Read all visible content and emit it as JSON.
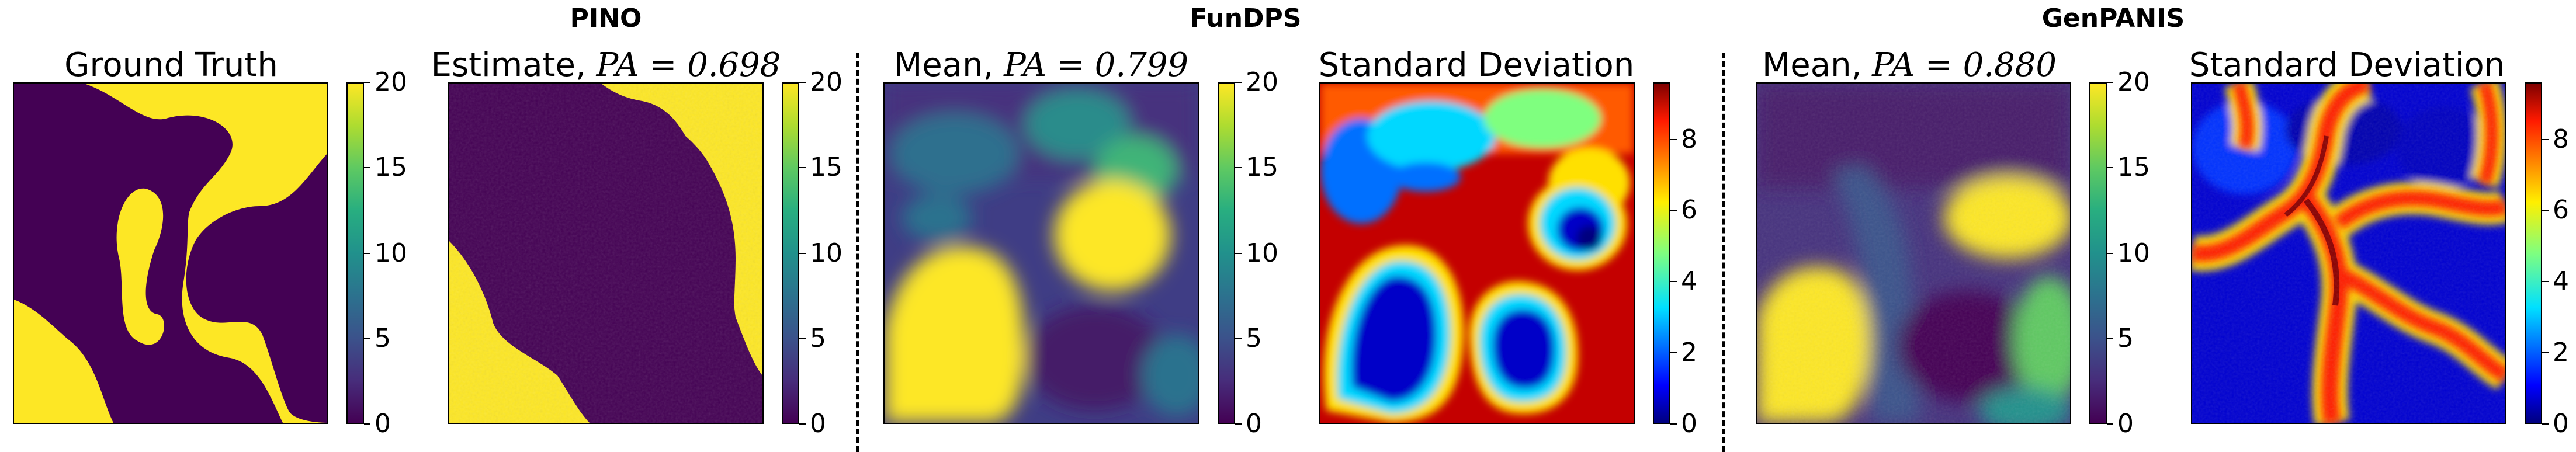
{
  "figure": {
    "groups": [
      {
        "title": "PINO"
      },
      {
        "title": "FunDPS"
      },
      {
        "title": "GenPANIS"
      }
    ],
    "panels": [
      {
        "title_prefix": "Ground Truth",
        "math": ""
      },
      {
        "title_prefix": "Estimate, ",
        "math": "PA = 0.698"
      },
      {
        "title_prefix": "Mean, ",
        "math": "PA = 0.799"
      },
      {
        "title_prefix": "Standard Deviation",
        "math": ""
      },
      {
        "title_prefix": "Mean, ",
        "math": "PA = 0.880"
      },
      {
        "title_prefix": "Standard Deviation",
        "math": ""
      }
    ],
    "colorbars": [
      {
        "colormap": "viridis",
        "ticks": [
          "0",
          "5",
          "10",
          "15",
          "20"
        ]
      },
      {
        "colormap": "viridis",
        "ticks": [
          "0",
          "5",
          "10",
          "15",
          "20"
        ]
      },
      {
        "colormap": "viridis",
        "ticks": [
          "0",
          "5",
          "10",
          "15",
          "20"
        ]
      },
      {
        "colormap": "jet",
        "ticks": [
          "0",
          "2",
          "4",
          "6",
          "8"
        ]
      },
      {
        "colormap": "viridis",
        "ticks": [
          "0",
          "5",
          "10",
          "15",
          "20"
        ]
      },
      {
        "colormap": "jet",
        "ticks": [
          "0",
          "2",
          "4",
          "6",
          "8"
        ]
      }
    ]
  },
  "chart_data": [
    {
      "type": "heatmap",
      "group": "PINO",
      "title": "Ground Truth",
      "colormap": "viridis",
      "clim": [
        0,
        20
      ],
      "colorbar_ticks": [
        0,
        5,
        10,
        15,
        20
      ]
    },
    {
      "type": "heatmap",
      "group": "PINO",
      "title": "Estimate, PA = 0.698",
      "pa": 0.698,
      "colormap": "viridis",
      "clim": [
        0,
        20
      ],
      "colorbar_ticks": [
        0,
        5,
        10,
        15,
        20
      ]
    },
    {
      "type": "heatmap",
      "group": "FunDPS",
      "title": "Mean, PA = 0.799",
      "pa": 0.799,
      "colormap": "viridis",
      "clim": [
        0,
        20
      ],
      "colorbar_ticks": [
        0,
        5,
        10,
        15,
        20
      ]
    },
    {
      "type": "heatmap",
      "group": "FunDPS",
      "title": "Standard Deviation",
      "colormap": "jet",
      "clim": [
        0,
        9.6
      ],
      "colorbar_ticks": [
        0,
        2,
        4,
        6,
        8
      ]
    },
    {
      "type": "heatmap",
      "group": "GenPANIS",
      "title": "Mean, PA = 0.880",
      "pa": 0.88,
      "colormap": "viridis",
      "clim": [
        0,
        20
      ],
      "colorbar_ticks": [
        0,
        5,
        10,
        15,
        20
      ]
    },
    {
      "type": "heatmap",
      "group": "GenPANIS",
      "title": "Standard Deviation",
      "colormap": "jet",
      "clim": [
        0,
        9.6
      ],
      "colorbar_ticks": [
        0,
        2,
        4,
        6,
        8
      ]
    }
  ]
}
